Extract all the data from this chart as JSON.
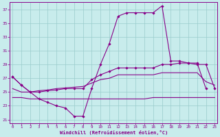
{
  "x": [
    0,
    1,
    2,
    3,
    4,
    5,
    6,
    7,
    8,
    9,
    10,
    11,
    12,
    13,
    14,
    15,
    16,
    17,
    18,
    19,
    20,
    21,
    22,
    23
  ],
  "line1_x": [
    0,
    1,
    2,
    3,
    4,
    5,
    6,
    7,
    8,
    9,
    10,
    11,
    12,
    13,
    14,
    15,
    16,
    17,
    18,
    19,
    20,
    21,
    22
  ],
  "line1_y": [
    27.2,
    26.0,
    25.0,
    24.0,
    23.5,
    23.0,
    22.7,
    21.5,
    21.5,
    25.5,
    29.0,
    32.0,
    36.0,
    36.5,
    36.5,
    36.5,
    36.5,
    37.5,
    29.5,
    29.5,
    29.2,
    29.2,
    25.5
  ],
  "line2_x": [
    0,
    1,
    2,
    3,
    4,
    5,
    6,
    7,
    8,
    9,
    10,
    11,
    12,
    13,
    14,
    15,
    16,
    17,
    18,
    19,
    20,
    21,
    22,
    23
  ],
  "line2_y": [
    27.2,
    26.0,
    25.0,
    25.0,
    25.2,
    25.3,
    25.5,
    25.5,
    25.5,
    26.8,
    27.5,
    28.0,
    28.5,
    28.5,
    28.5,
    28.5,
    28.5,
    29.0,
    29.0,
    29.2,
    29.2,
    29.0,
    29.0,
    25.5
  ],
  "line3_x": [
    0,
    1,
    2,
    3,
    4,
    5,
    6,
    7,
    8,
    9,
    10,
    11,
    12,
    13,
    14,
    15,
    16,
    17,
    18,
    19,
    20,
    21,
    22,
    23
  ],
  "line3_y": [
    25.5,
    25.0,
    25.0,
    25.2,
    25.3,
    25.5,
    25.6,
    25.7,
    25.8,
    26.3,
    26.8,
    27.0,
    27.5,
    27.5,
    27.5,
    27.5,
    27.5,
    27.8,
    27.8,
    27.8,
    27.8,
    27.8,
    26.5,
    26.0
  ],
  "line4_x": [
    0,
    1,
    2,
    3,
    4,
    5,
    6,
    7,
    8,
    9,
    10,
    11,
    12,
    13,
    14,
    15,
    16,
    17,
    18,
    19,
    20,
    21,
    22,
    23
  ],
  "line4_y": [
    24.2,
    24.2,
    24.0,
    24.0,
    24.0,
    24.0,
    24.0,
    24.0,
    24.0,
    24.0,
    24.0,
    24.0,
    24.0,
    24.0,
    24.0,
    24.0,
    24.2,
    24.2,
    24.2,
    24.2,
    24.2,
    24.2,
    24.2,
    24.2
  ],
  "ylim": [
    20.5,
    38.0
  ],
  "yticks": [
    21,
    23,
    25,
    27,
    29,
    31,
    33,
    35,
    37
  ],
  "xlim": [
    -0.3,
    23.3
  ],
  "xlabel": "Windchill (Refroidissement éolien,°C)",
  "bg_color": "#c8ecec",
  "grid_color": "#99cccc",
  "line_color": "#880088",
  "tick_color": "#880088",
  "marker": "D"
}
